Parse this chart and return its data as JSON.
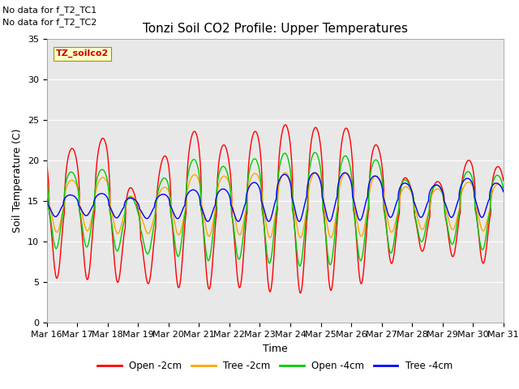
{
  "title": "Tonzi Soil CO2 Profile: Upper Temperatures",
  "xlabel": "Time",
  "ylabel": "Soil Temperature (C)",
  "ylim": [
    0,
    35
  ],
  "xtick_labels": [
    "Mar 16",
    "Mar 17",
    "Mar 18",
    "Mar 19",
    "Mar 20",
    "Mar 21",
    "Mar 22",
    "Mar 23",
    "Mar 24",
    "Mar 25",
    "Mar 26",
    "Mar 27",
    "Mar 28",
    "Mar 29",
    "Mar 30",
    "Mar 31"
  ],
  "ytick_vals": [
    0,
    5,
    10,
    15,
    20,
    25,
    30,
    35
  ],
  "colors": {
    "open2": "#FF0000",
    "tree2": "#FFA500",
    "open4": "#00CC00",
    "tree4": "#0000FF"
  },
  "legend_entries": [
    "Open -2cm",
    "Tree -2cm",
    "Open -4cm",
    "Tree -4cm"
  ],
  "no_data_text": [
    "No data for f_T2_TC1",
    "No data for f_T2_TC2"
  ],
  "inset_label": "TZ_soilco2",
  "background_color": "#E8E8E8",
  "title_fontsize": 11,
  "axis_label_fontsize": 9,
  "tick_fontsize": 8,
  "note_fontsize": 8
}
